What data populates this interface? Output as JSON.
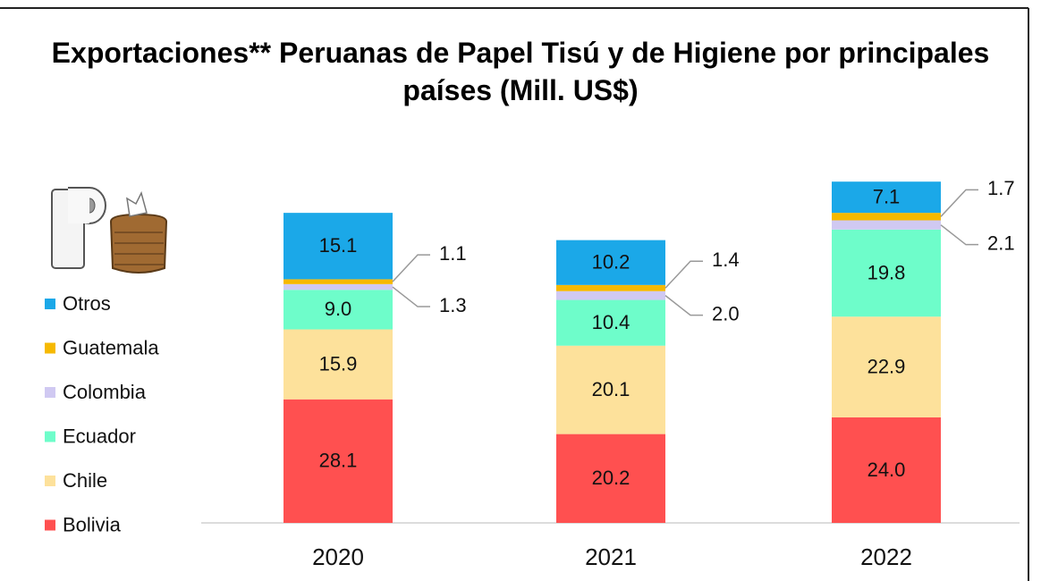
{
  "chart_data": {
    "type": "stacked_bar",
    "title": "Exportaciones** Peruanas de Papel Tisú y de Higiene por principales países (Mill. US$)",
    "categories": [
      "2020",
      "2021",
      "2022"
    ],
    "series": [
      {
        "name": "Bolivia",
        "color": "#ff5050",
        "values": [
          28.1,
          20.2,
          24.0
        ],
        "value_labels": [
          "28.1",
          "20.2",
          "24.0"
        ]
      },
      {
        "name": "Chile",
        "color": "#fde19b",
        "values": [
          15.9,
          20.1,
          22.9
        ],
        "value_labels": [
          "15.9",
          "20.1",
          "22.9"
        ]
      },
      {
        "name": "Ecuador",
        "color": "#6efdca",
        "values": [
          9.0,
          10.4,
          19.8
        ],
        "value_labels": [
          "9.0",
          "10.4",
          "19.8"
        ]
      },
      {
        "name": "Colombia",
        "color": "#d0c9f2",
        "values": [
          1.3,
          2.0,
          2.1
        ],
        "value_labels": [
          "1.3",
          "2.0",
          "2.1"
        ]
      },
      {
        "name": "Guatemala",
        "color": "#f6b900",
        "values": [
          1.1,
          1.4,
          1.7
        ],
        "value_labels": [
          "1.1",
          "1.4",
          "1.7"
        ]
      },
      {
        "name": "Otros",
        "color": "#1ba8e8",
        "values": [
          15.1,
          10.2,
          7.1
        ],
        "value_labels": [
          "15.1",
          "10.2",
          "7.1"
        ]
      }
    ],
    "legend": "left"
  }
}
